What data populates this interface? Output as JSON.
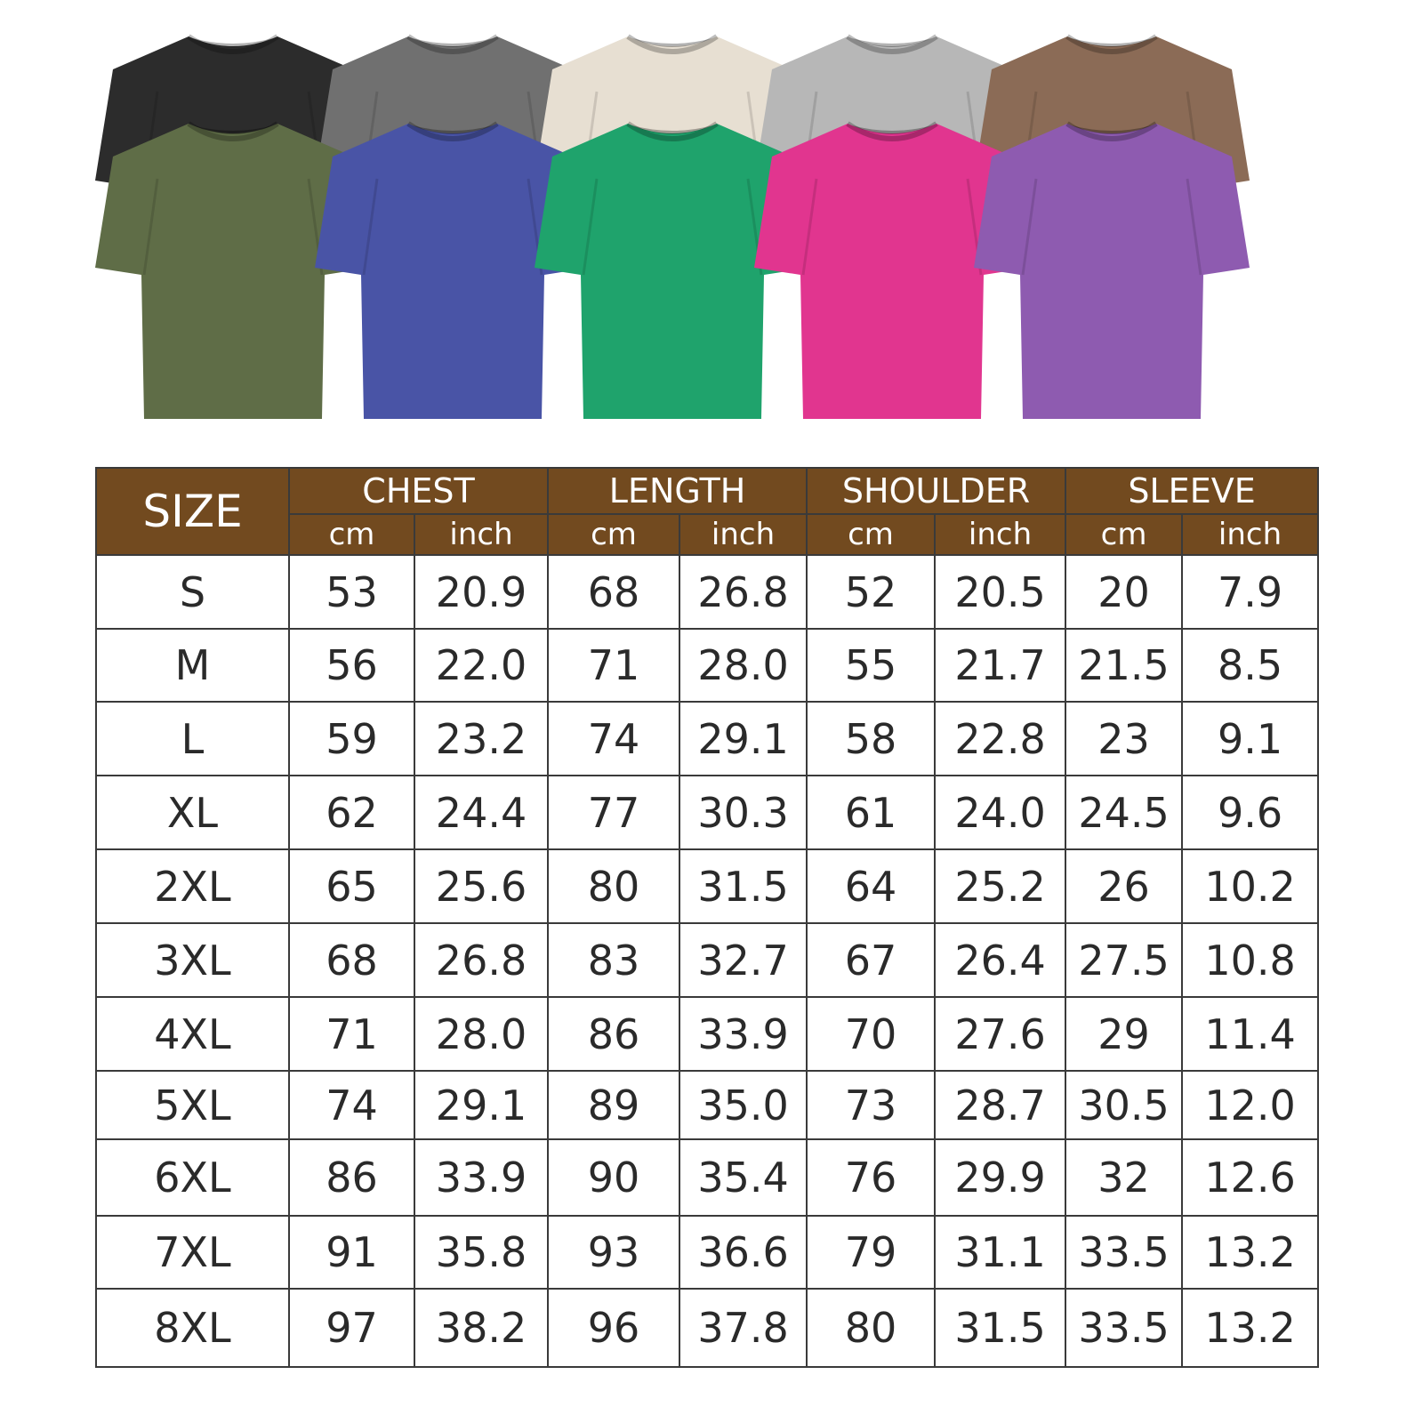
{
  "shirt_colors": {
    "back_row": [
      "#2c2c2c",
      "#707070",
      "#e7dfd2",
      "#b7b7b7",
      "#8b6b56"
    ],
    "front_row": [
      "#5f6d47",
      "#4954a6",
      "#1fa36c",
      "#e1358f",
      "#8e5bb0"
    ]
  },
  "colors": {
    "header_bg": "#724a1f",
    "header_text": "#ffffff",
    "border": "#3a3a3a"
  },
  "size_chart": {
    "size_header": "SIZE",
    "groups": [
      "CHEST",
      "LENGTH",
      "SHOULDER",
      "SLEEVE"
    ],
    "units": [
      "cm",
      "inch"
    ],
    "rows": [
      [
        "S",
        "53",
        "20.9",
        "68",
        "26.8",
        "52",
        "20.5",
        "20",
        "7.9"
      ],
      [
        "M",
        "56",
        "22.0",
        "71",
        "28.0",
        "55",
        "21.7",
        "21.5",
        "8.5"
      ],
      [
        "L",
        "59",
        "23.2",
        "74",
        "29.1",
        "58",
        "22.8",
        "23",
        "9.1"
      ],
      [
        "XL",
        "62",
        "24.4",
        "77",
        "30.3",
        "61",
        "24.0",
        "24.5",
        "9.6"
      ],
      [
        "2XL",
        "65",
        "25.6",
        "80",
        "31.5",
        "64",
        "25.2",
        "26",
        "10.2"
      ],
      [
        "3XL",
        "68",
        "26.8",
        "83",
        "32.7",
        "67",
        "26.4",
        "27.5",
        "10.8"
      ],
      [
        "4XL",
        "71",
        "28.0",
        "86",
        "33.9",
        "70",
        "27.6",
        "29",
        "11.4"
      ],
      [
        "5XL",
        "74",
        "29.1",
        "89",
        "35.0",
        "73",
        "28.7",
        "30.5",
        "12.0"
      ],
      [
        "6XL",
        "86",
        "33.9",
        "90",
        "35.4",
        "76",
        "29.9",
        "32",
        "12.6"
      ],
      [
        "7XL",
        "91",
        "35.8",
        "93",
        "36.6",
        "79",
        "31.1",
        "33.5",
        "13.2"
      ],
      [
        "8XL",
        "97",
        "38.2",
        "96",
        "37.8",
        "80",
        "31.5",
        "33.5",
        "13.2"
      ]
    ]
  }
}
